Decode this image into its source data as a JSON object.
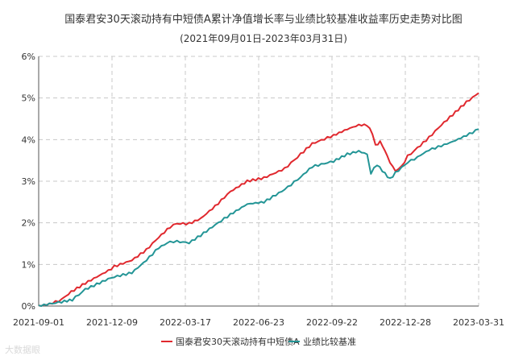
{
  "chart_data": {
    "type": "line",
    "title": "国泰君安30天滚动持有中短债A累计净值增长率与业绩比较基准收益率历史走势对比图",
    "subtitle": "(2021年09月01日-2023年03月31日)",
    "x_ticks": [
      "2021-09-01",
      "2021-12-09",
      "2022-03-17",
      "2022-06-23",
      "2022-09-22",
      "2022-12-28",
      "2023-03-31"
    ],
    "y_ticks": [
      "0%",
      "1%",
      "2%",
      "3%",
      "4%",
      "5%",
      "6%"
    ],
    "ylim": [
      0,
      6
    ],
    "y_unit": "%",
    "grid": true,
    "legend_position": "bottom-center",
    "x_range": [
      "2021-09-01",
      "2023-03-31"
    ],
    "series": [
      {
        "name": "国泰君安30天滚动持有中短债A",
        "color": "#e0282e",
        "points": [
          [
            "2021-09-01",
            0.0
          ],
          [
            "2021-09-15",
            0.05
          ],
          [
            "2021-10-01",
            0.15
          ],
          [
            "2021-10-10",
            0.3
          ],
          [
            "2021-11-01",
            0.55
          ],
          [
            "2021-12-01",
            0.85
          ],
          [
            "2021-12-09",
            0.95
          ],
          [
            "2022-01-01",
            1.1
          ],
          [
            "2022-01-20",
            1.35
          ],
          [
            "2022-02-05",
            1.65
          ],
          [
            "2022-02-20",
            1.9
          ],
          [
            "2022-03-01",
            1.98
          ],
          [
            "2022-03-17",
            1.98
          ],
          [
            "2022-04-01",
            2.1
          ],
          [
            "2022-04-20",
            2.4
          ],
          [
            "2022-05-10",
            2.75
          ],
          [
            "2022-06-01",
            3.0
          ],
          [
            "2022-06-23",
            3.08
          ],
          [
            "2022-07-20",
            3.3
          ],
          [
            "2022-08-10",
            3.65
          ],
          [
            "2022-08-25",
            3.9
          ],
          [
            "2022-09-22",
            4.1
          ],
          [
            "2022-10-10",
            4.25
          ],
          [
            "2022-10-25",
            4.35
          ],
          [
            "2022-11-05",
            4.35
          ],
          [
            "2022-11-12",
            4.15
          ],
          [
            "2022-11-16",
            3.85
          ],
          [
            "2022-11-22",
            3.95
          ],
          [
            "2022-11-28",
            3.75
          ],
          [
            "2022-12-05",
            3.45
          ],
          [
            "2022-12-12",
            3.25
          ],
          [
            "2022-12-20",
            3.35
          ],
          [
            "2022-12-28",
            3.6
          ],
          [
            "2023-01-10",
            3.8
          ],
          [
            "2023-01-25",
            4.05
          ],
          [
            "2023-02-10",
            4.35
          ],
          [
            "2023-02-25",
            4.6
          ],
          [
            "2023-03-15",
            4.9
          ],
          [
            "2023-03-31",
            5.12
          ]
        ]
      },
      {
        "name": "业绩比较基准",
        "color": "#239596",
        "points": [
          [
            "2021-09-01",
            0.0
          ],
          [
            "2021-09-15",
            0.05
          ],
          [
            "2021-10-01",
            0.1
          ],
          [
            "2021-10-15",
            0.15
          ],
          [
            "2021-11-01",
            0.4
          ],
          [
            "2021-12-01",
            0.65
          ],
          [
            "2021-12-09",
            0.7
          ],
          [
            "2022-01-01",
            0.8
          ],
          [
            "2022-01-20",
            1.1
          ],
          [
            "2022-02-05",
            1.4
          ],
          [
            "2022-02-20",
            1.55
          ],
          [
            "2022-03-01",
            1.55
          ],
          [
            "2022-03-17",
            1.52
          ],
          [
            "2022-04-01",
            1.7
          ],
          [
            "2022-04-20",
            1.95
          ],
          [
            "2022-05-10",
            2.2
          ],
          [
            "2022-06-01",
            2.45
          ],
          [
            "2022-06-23",
            2.5
          ],
          [
            "2022-07-20",
            2.8
          ],
          [
            "2022-08-10",
            3.1
          ],
          [
            "2022-08-25",
            3.35
          ],
          [
            "2022-09-22",
            3.48
          ],
          [
            "2022-10-10",
            3.65
          ],
          [
            "2022-10-25",
            3.72
          ],
          [
            "2022-11-05",
            3.65
          ],
          [
            "2022-11-10",
            3.2
          ],
          [
            "2022-11-18",
            3.4
          ],
          [
            "2022-11-25",
            3.25
          ],
          [
            "2022-12-05",
            3.05
          ],
          [
            "2022-12-12",
            3.2
          ],
          [
            "2022-12-28",
            3.45
          ],
          [
            "2023-01-10",
            3.58
          ],
          [
            "2023-01-25",
            3.75
          ],
          [
            "2023-02-10",
            3.85
          ],
          [
            "2023-02-25",
            3.95
          ],
          [
            "2023-03-15",
            4.1
          ],
          [
            "2023-03-31",
            4.25
          ]
        ]
      }
    ]
  },
  "watermark": "大数据眼"
}
